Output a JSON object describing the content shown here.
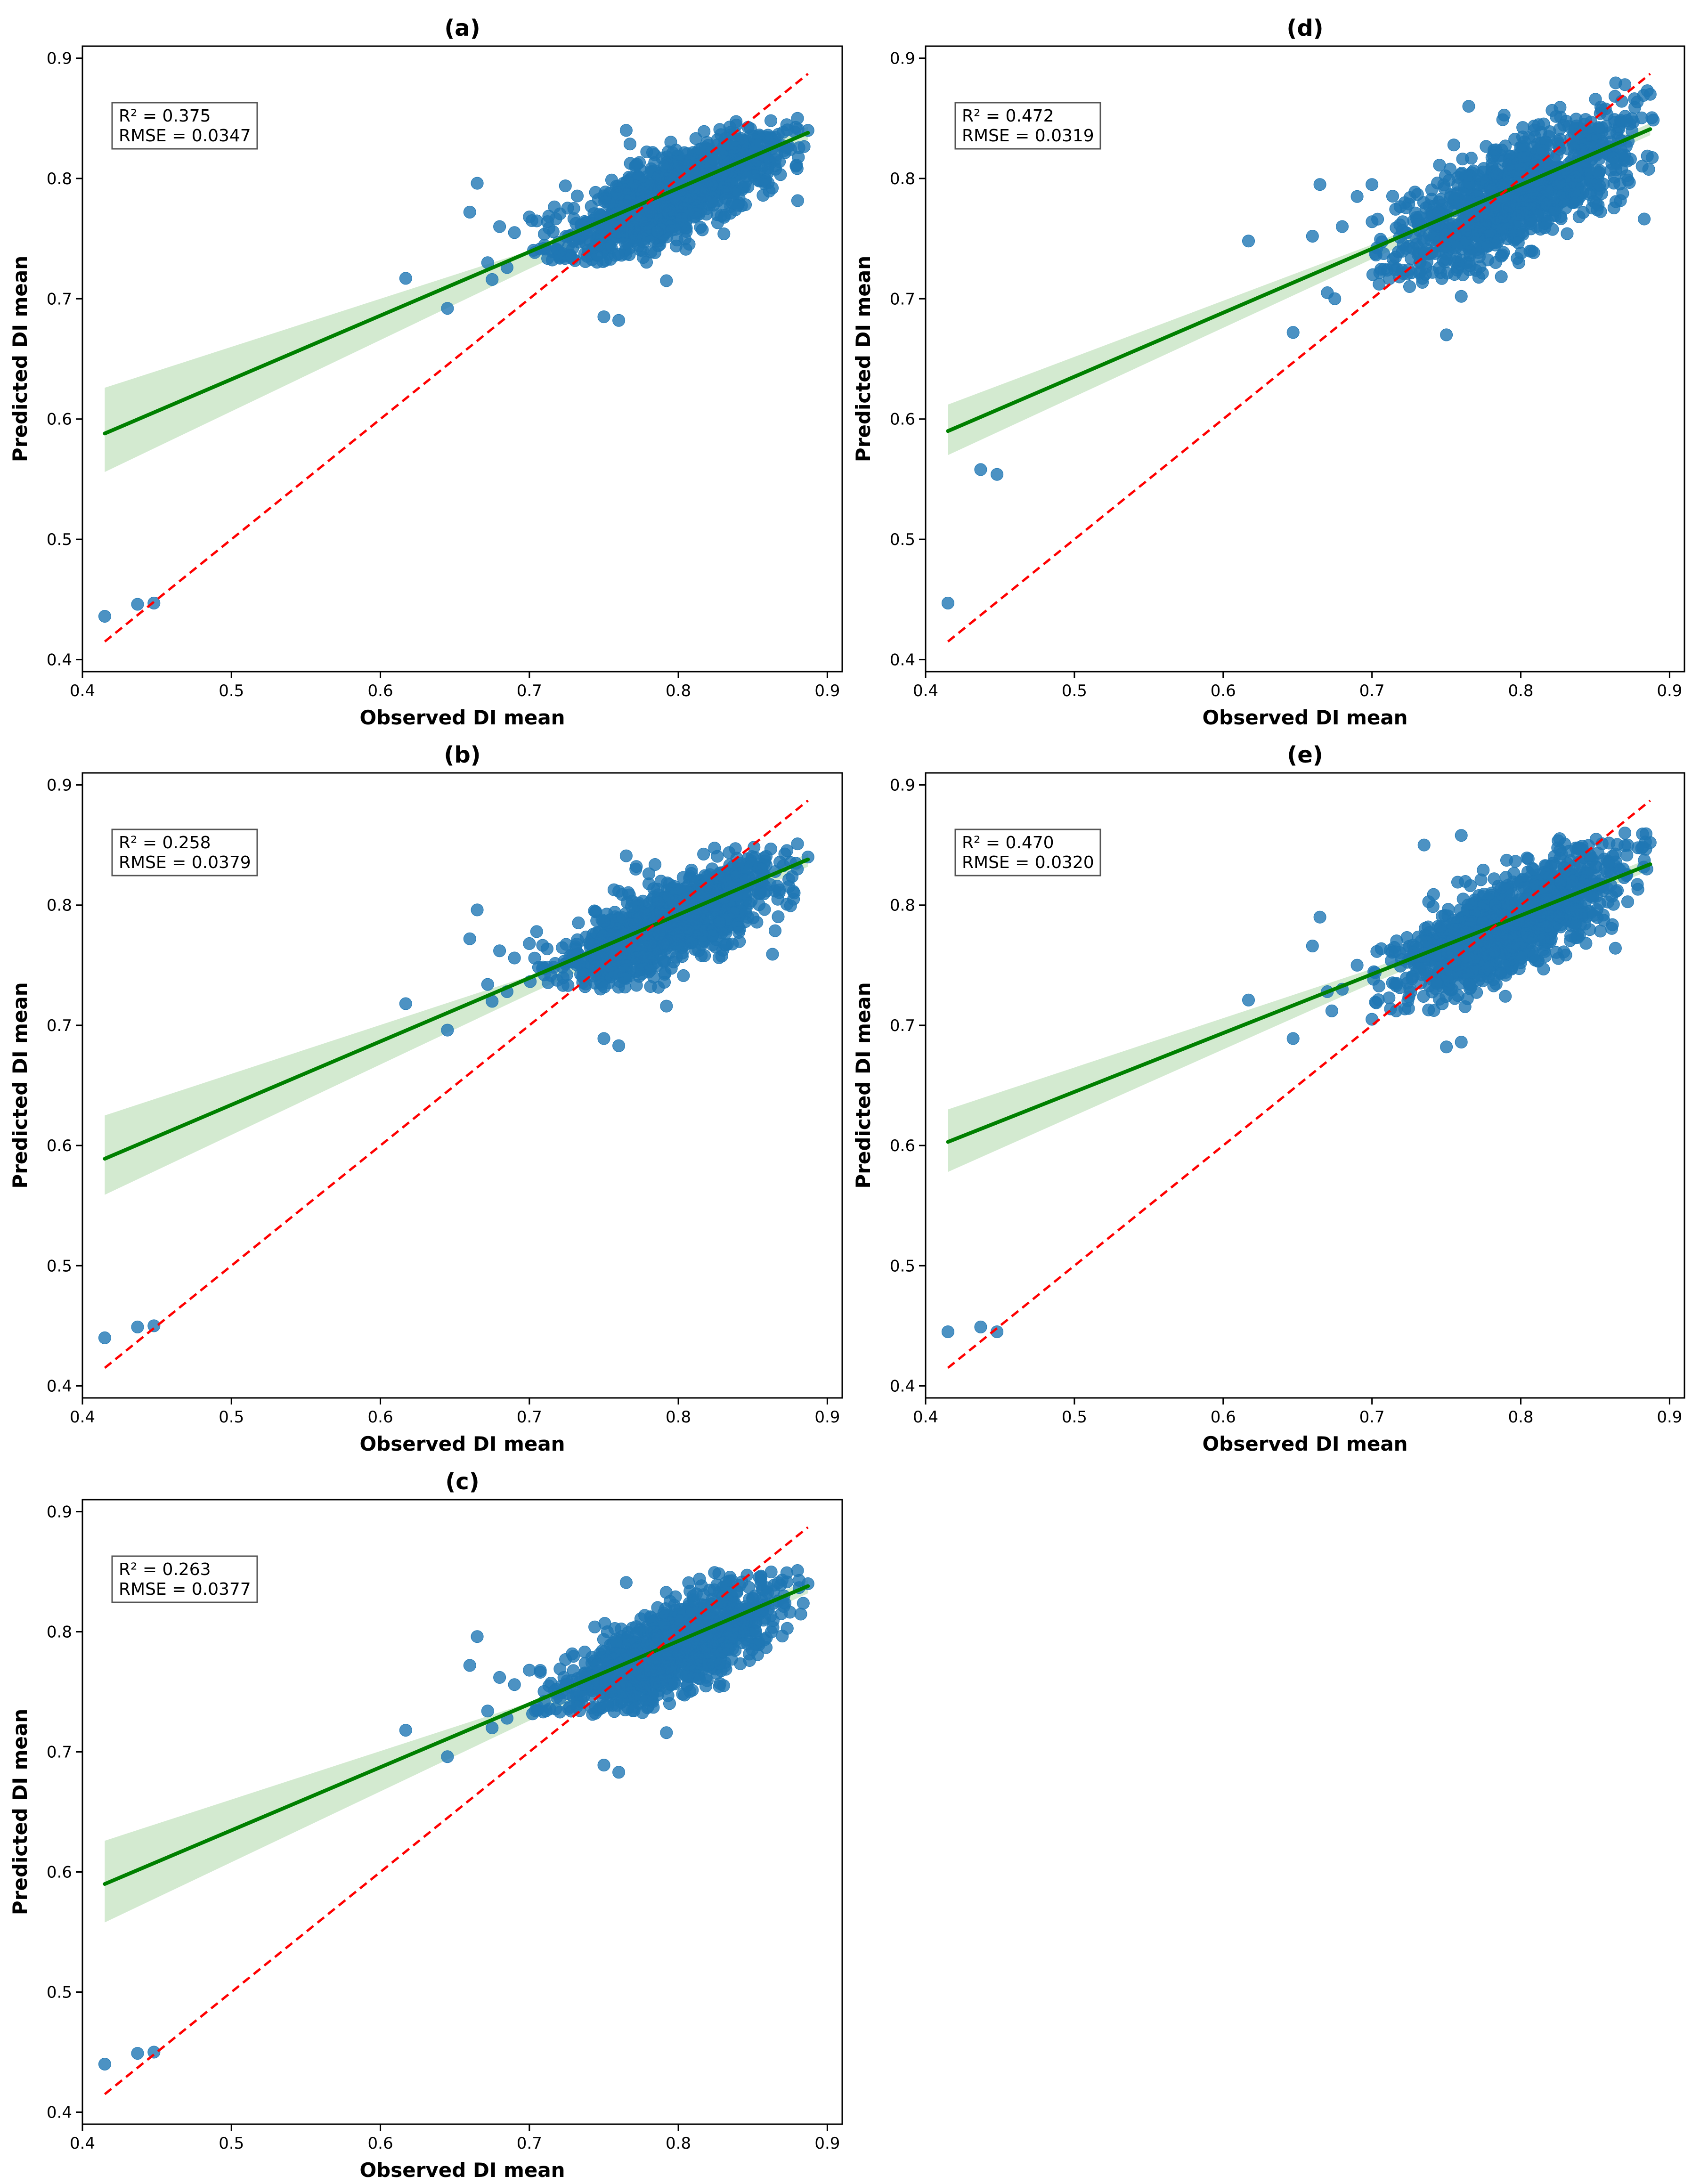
{
  "colors": {
    "points": "#1f77b4",
    "fit_line": "#008000",
    "ci_band": "#a8d5a2",
    "reference_line": "#ff0000",
    "frame": "#000000"
  },
  "chart_data": [
    {
      "id": "a",
      "type": "scatter",
      "title": "(a)",
      "xlabel": "Observed DI mean",
      "ylabel": "Predicted DI mean",
      "xlim": [
        0.4,
        0.91
      ],
      "ylim": [
        0.39,
        0.91
      ],
      "xticks": [
        0.4,
        0.5,
        0.6,
        0.7,
        0.8,
        0.9
      ],
      "yticks": [
        0.4,
        0.5,
        0.6,
        0.7,
        0.8,
        0.9
      ],
      "tick_labels": [
        "0.4",
        "0.5",
        "0.6",
        "0.7",
        "0.8",
        "0.9"
      ],
      "grid": false,
      "stats": {
        "r2_text": "R² = 0.375",
        "rmse_text": "RMSE = 0.0347"
      },
      "fit_line": {
        "x": [
          0.415,
          0.887
        ],
        "y": [
          0.588,
          0.838
        ]
      },
      "ci_band": {
        "x": [
          0.415,
          0.7,
          0.887
        ],
        "upper": [
          0.626,
          0.74,
          0.843
        ],
        "lower": [
          0.556,
          0.725,
          0.832
        ]
      },
      "reference_line": {
        "x": [
          0.415,
          0.887
        ],
        "y": [
          0.415,
          0.887
        ]
      },
      "cloud": {
        "x_center": 0.795,
        "y_center": 0.785,
        "x_sd": 0.038,
        "slope": 0.55,
        "y_sd": 0.018,
        "x_range": [
          0.7,
          0.885
        ],
        "y_range": [
          0.73,
          0.85
        ],
        "count": 1100
      },
      "points": [
        [
          0.415,
          0.436
        ],
        [
          0.437,
          0.446
        ],
        [
          0.448,
          0.447
        ],
        [
          0.617,
          0.717
        ],
        [
          0.645,
          0.692
        ],
        [
          0.665,
          0.796
        ],
        [
          0.66,
          0.772
        ],
        [
          0.672,
          0.73
        ],
        [
          0.675,
          0.716
        ],
        [
          0.685,
          0.726
        ],
        [
          0.69,
          0.755
        ],
        [
          0.7,
          0.768
        ],
        [
          0.71,
          0.742
        ],
        [
          0.68,
          0.76
        ],
        [
          0.75,
          0.685
        ],
        [
          0.76,
          0.682
        ],
        [
          0.792,
          0.715
        ],
        [
          0.765,
          0.84
        ],
        [
          0.88,
          0.85
        ],
        [
          0.887,
          0.84
        ]
      ]
    },
    {
      "id": "d",
      "type": "scatter",
      "title": "(d)",
      "xlabel": "Observed DI mean",
      "ylabel": "Predicted DI mean",
      "xlim": [
        0.4,
        0.91
      ],
      "ylim": [
        0.39,
        0.91
      ],
      "xticks": [
        0.4,
        0.5,
        0.6,
        0.7,
        0.8,
        0.9
      ],
      "yticks": [
        0.4,
        0.5,
        0.6,
        0.7,
        0.8,
        0.9
      ],
      "tick_labels": [
        "0.4",
        "0.5",
        "0.6",
        "0.7",
        "0.8",
        "0.9"
      ],
      "grid": false,
      "stats": {
        "r2_text": "R² = 0.472",
        "rmse_text": "RMSE = 0.0319"
      },
      "fit_line": {
        "x": [
          0.415,
          0.887
        ],
        "y": [
          0.59,
          0.841
        ]
      },
      "ci_band": {
        "x": [
          0.415,
          0.7,
          0.887
        ],
        "upper": [
          0.612,
          0.745,
          0.846
        ],
        "lower": [
          0.57,
          0.733,
          0.836
        ]
      },
      "reference_line": {
        "x": [
          0.415,
          0.887
        ],
        "y": [
          0.415,
          0.887
        ]
      },
      "cloud": {
        "x_center": 0.795,
        "y_center": 0.785,
        "x_sd": 0.04,
        "slope": 0.6,
        "y_sd": 0.022,
        "x_range": [
          0.7,
          0.89
        ],
        "y_range": [
          0.71,
          0.88
        ],
        "count": 1100
      },
      "points": [
        [
          0.415,
          0.447
        ],
        [
          0.437,
          0.558
        ],
        [
          0.448,
          0.554
        ],
        [
          0.617,
          0.748
        ],
        [
          0.647,
          0.672
        ],
        [
          0.66,
          0.752
        ],
        [
          0.665,
          0.795
        ],
        [
          0.67,
          0.705
        ],
        [
          0.675,
          0.7
        ],
        [
          0.68,
          0.76
        ],
        [
          0.69,
          0.785
        ],
        [
          0.7,
          0.795
        ],
        [
          0.75,
          0.67
        ],
        [
          0.76,
          0.702
        ],
        [
          0.765,
          0.86
        ],
        [
          0.87,
          0.878
        ],
        [
          0.887,
          0.87
        ]
      ]
    },
    {
      "id": "b",
      "type": "scatter",
      "title": "(b)",
      "xlabel": "Observed DI mean",
      "ylabel": "Predicted DI mean",
      "xlim": [
        0.4,
        0.91
      ],
      "ylim": [
        0.39,
        0.91
      ],
      "xticks": [
        0.4,
        0.5,
        0.6,
        0.7,
        0.8,
        0.9
      ],
      "yticks": [
        0.4,
        0.5,
        0.6,
        0.7,
        0.8,
        0.9
      ],
      "tick_labels": [
        "0.4",
        "0.5",
        "0.6",
        "0.7",
        "0.8",
        "0.9"
      ],
      "grid": false,
      "stats": {
        "r2_text": "R² = 0.258",
        "rmse_text": "RMSE = 0.0379"
      },
      "fit_line": {
        "x": [
          0.415,
          0.887
        ],
        "y": [
          0.589,
          0.838
        ]
      },
      "ci_band": {
        "x": [
          0.415,
          0.7,
          0.887
        ],
        "upper": [
          0.625,
          0.741,
          0.843
        ],
        "lower": [
          0.559,
          0.726,
          0.832
        ]
      },
      "reference_line": {
        "x": [
          0.415,
          0.887
        ],
        "y": [
          0.415,
          0.887
        ]
      },
      "cloud": {
        "x_center": 0.795,
        "y_center": 0.785,
        "x_sd": 0.038,
        "slope": 0.55,
        "y_sd": 0.018,
        "x_range": [
          0.7,
          0.885
        ],
        "y_range": [
          0.73,
          0.85
        ],
        "count": 1100
      },
      "points": [
        [
          0.415,
          0.44
        ],
        [
          0.437,
          0.449
        ],
        [
          0.448,
          0.45
        ],
        [
          0.617,
          0.718
        ],
        [
          0.645,
          0.696
        ],
        [
          0.665,
          0.796
        ],
        [
          0.66,
          0.772
        ],
        [
          0.672,
          0.734
        ],
        [
          0.675,
          0.72
        ],
        [
          0.685,
          0.728
        ],
        [
          0.69,
          0.756
        ],
        [
          0.7,
          0.768
        ],
        [
          0.71,
          0.742
        ],
        [
          0.68,
          0.762
        ],
        [
          0.75,
          0.689
        ],
        [
          0.76,
          0.683
        ],
        [
          0.792,
          0.716
        ],
        [
          0.765,
          0.841
        ],
        [
          0.88,
          0.851
        ],
        [
          0.887,
          0.84
        ]
      ]
    },
    {
      "id": "e",
      "type": "scatter",
      "title": "(e)",
      "xlabel": "Observed DI mean",
      "ylabel": "Predicted DI mean",
      "xlim": [
        0.4,
        0.91
      ],
      "ylim": [
        0.39,
        0.91
      ],
      "xticks": [
        0.4,
        0.5,
        0.6,
        0.7,
        0.8,
        0.9
      ],
      "yticks": [
        0.4,
        0.5,
        0.6,
        0.7,
        0.8,
        0.9
      ],
      "tick_labels": [
        "0.4",
        "0.5",
        "0.6",
        "0.7",
        "0.8",
        "0.9"
      ],
      "grid": false,
      "stats": {
        "r2_text": "R² = 0.470",
        "rmse_text": "RMSE = 0.0320"
      },
      "fit_line": {
        "x": [
          0.415,
          0.887
        ],
        "y": [
          0.603,
          0.834
        ]
      },
      "ci_band": {
        "x": [
          0.415,
          0.7,
          0.887
        ],
        "upper": [
          0.63,
          0.747,
          0.839
        ],
        "lower": [
          0.578,
          0.735,
          0.829
        ]
      },
      "reference_line": {
        "x": [
          0.415,
          0.887
        ],
        "y": [
          0.415,
          0.887
        ]
      },
      "cloud": {
        "x_center": 0.795,
        "y_center": 0.785,
        "x_sd": 0.04,
        "slope": 0.6,
        "y_sd": 0.02,
        "x_range": [
          0.7,
          0.89
        ],
        "y_range": [
          0.71,
          0.86
        ],
        "count": 1100
      },
      "points": [
        [
          0.415,
          0.445
        ],
        [
          0.437,
          0.449
        ],
        [
          0.448,
          0.445
        ],
        [
          0.617,
          0.721
        ],
        [
          0.647,
          0.689
        ],
        [
          0.66,
          0.766
        ],
        [
          0.665,
          0.79
        ],
        [
          0.67,
          0.728
        ],
        [
          0.673,
          0.712
        ],
        [
          0.68,
          0.73
        ],
        [
          0.69,
          0.75
        ],
        [
          0.7,
          0.705
        ],
        [
          0.75,
          0.682
        ],
        [
          0.76,
          0.686
        ],
        [
          0.735,
          0.85
        ],
        [
          0.76,
          0.858
        ],
        [
          0.87,
          0.86
        ],
        [
          0.887,
          0.852
        ]
      ]
    },
    {
      "id": "c",
      "type": "scatter",
      "title": "(c)",
      "xlabel": "Observed DI mean",
      "ylabel": "Predicted DI mean",
      "xlim": [
        0.4,
        0.91
      ],
      "ylim": [
        0.39,
        0.91
      ],
      "xticks": [
        0.4,
        0.5,
        0.6,
        0.7,
        0.8,
        0.9
      ],
      "yticks": [
        0.4,
        0.5,
        0.6,
        0.7,
        0.8,
        0.9
      ],
      "tick_labels": [
        "0.4",
        "0.5",
        "0.6",
        "0.7",
        "0.8",
        "0.9"
      ],
      "grid": false,
      "stats": {
        "r2_text": "R² = 0.263",
        "rmse_text": "RMSE = 0.0377"
      },
      "fit_line": {
        "x": [
          0.415,
          0.887
        ],
        "y": [
          0.59,
          0.838
        ]
      },
      "ci_band": {
        "x": [
          0.415,
          0.7,
          0.887
        ],
        "upper": [
          0.626,
          0.741,
          0.843
        ],
        "lower": [
          0.558,
          0.726,
          0.832
        ]
      },
      "reference_line": {
        "x": [
          0.415,
          0.887
        ],
        "y": [
          0.415,
          0.887
        ]
      },
      "cloud": {
        "x_center": 0.795,
        "y_center": 0.785,
        "x_sd": 0.038,
        "slope": 0.55,
        "y_sd": 0.018,
        "x_range": [
          0.7,
          0.885
        ],
        "y_range": [
          0.73,
          0.85
        ],
        "count": 1100
      },
      "points": [
        [
          0.415,
          0.44
        ],
        [
          0.437,
          0.449
        ],
        [
          0.448,
          0.45
        ],
        [
          0.617,
          0.718
        ],
        [
          0.645,
          0.696
        ],
        [
          0.665,
          0.796
        ],
        [
          0.66,
          0.772
        ],
        [
          0.672,
          0.734
        ],
        [
          0.675,
          0.72
        ],
        [
          0.685,
          0.728
        ],
        [
          0.69,
          0.756
        ],
        [
          0.7,
          0.768
        ],
        [
          0.71,
          0.742
        ],
        [
          0.68,
          0.762
        ],
        [
          0.75,
          0.689
        ],
        [
          0.76,
          0.683
        ],
        [
          0.792,
          0.716
        ],
        [
          0.765,
          0.841
        ],
        [
          0.88,
          0.851
        ],
        [
          0.887,
          0.84
        ]
      ]
    }
  ]
}
